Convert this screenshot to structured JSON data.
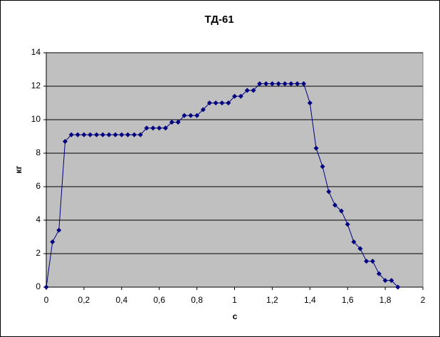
{
  "chart_data": {
    "type": "line",
    "title": "ТД-61",
    "xlabel": "с",
    "ylabel": "кг",
    "x": [
      0,
      0.033,
      0.067,
      0.1,
      0.133,
      0.167,
      0.2,
      0.233,
      0.267,
      0.3,
      0.333,
      0.367,
      0.4,
      0.433,
      0.467,
      0.5,
      0.533,
      0.567,
      0.6,
      0.633,
      0.667,
      0.7,
      0.733,
      0.767,
      0.8,
      0.833,
      0.867,
      0.9,
      0.933,
      0.967,
      1.0,
      1.033,
      1.067,
      1.1,
      1.133,
      1.167,
      1.2,
      1.233,
      1.267,
      1.3,
      1.333,
      1.367,
      1.4,
      1.433,
      1.467,
      1.5,
      1.533,
      1.567,
      1.6,
      1.633,
      1.667,
      1.7,
      1.733,
      1.767,
      1.8,
      1.833,
      1.867
    ],
    "series": [
      {
        "color": "#000080",
        "values": [
          0,
          2.7,
          3.4,
          8.7,
          9.1,
          9.1,
          9.1,
          9.1,
          9.1,
          9.1,
          9.1,
          9.1,
          9.1,
          9.1,
          9.1,
          9.1,
          9.5,
          9.5,
          9.5,
          9.5,
          9.85,
          9.85,
          10.25,
          10.25,
          10.25,
          10.6,
          11.0,
          11.0,
          11.0,
          11.0,
          11.4,
          11.4,
          11.75,
          11.75,
          12.15,
          12.15,
          12.15,
          12.15,
          12.15,
          12.15,
          12.15,
          12.15,
          11.0,
          8.3,
          7.2,
          5.7,
          4.9,
          4.55,
          3.75,
          2.7,
          2.3,
          1.55,
          1.55,
          0.8,
          0.4,
          0.4,
          0
        ]
      }
    ],
    "xlim": [
      0,
      2
    ],
    "ylim": [
      0,
      14
    ],
    "xticks": [
      0,
      {
        "value": 0.2,
        "label": "0,2"
      },
      {
        "value": 0.4,
        "label": "0,4"
      },
      {
        "value": 0.6,
        "label": "0,6"
      },
      {
        "value": 0.8,
        "label": "0,8"
      },
      1,
      {
        "value": 1.2,
        "label": "1,2"
      },
      {
        "value": 1.4,
        "label": "1,4"
      },
      {
        "value": 1.6,
        "label": "1,6"
      },
      {
        "value": 1.8,
        "label": "1,8"
      },
      2
    ],
    "yticks": [
      0,
      2,
      4,
      6,
      8,
      10,
      12,
      14
    ],
    "grid": true,
    "plot_background": "#c0c0c0"
  }
}
